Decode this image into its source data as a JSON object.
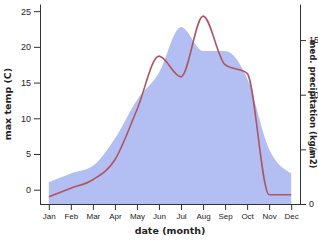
{
  "chart_data": {
    "type": "line",
    "x_label": "date (month)",
    "y_label": "max temp (C)",
    "y2_label": "med. precipitation (kg/m2)",
    "categories": [
      "Jan",
      "Feb",
      "Mar",
      "Apr",
      "May",
      "Jun",
      "Jul",
      "Aug",
      "Sep",
      "Oct",
      "Nov",
      "Dec"
    ],
    "series": [
      {
        "type": "area",
        "axis": "y2",
        "color": "#b3bff3",
        "values": [
          2.0,
          2.8,
          3.5,
          6.0,
          9.5,
          12.0,
          16.2,
          14.0,
          14.0,
          11.5,
          5.0,
          2.8
        ]
      },
      {
        "type": "line",
        "color": "#b05560",
        "values": [
          -1.0,
          0.2,
          1.4,
          4.2,
          11.2,
          18.7,
          15.8,
          24.3,
          17.5,
          16.3,
          -0.7,
          -0.7
        ]
      }
    ],
    "ylim": [
      -2,
      26
    ],
    "yticks": [
      0,
      5,
      10,
      15,
      20,
      25
    ],
    "y2lim": [
      0,
      18.3
    ],
    "y2ticks": [
      0,
      5,
      10,
      15
    ]
  }
}
